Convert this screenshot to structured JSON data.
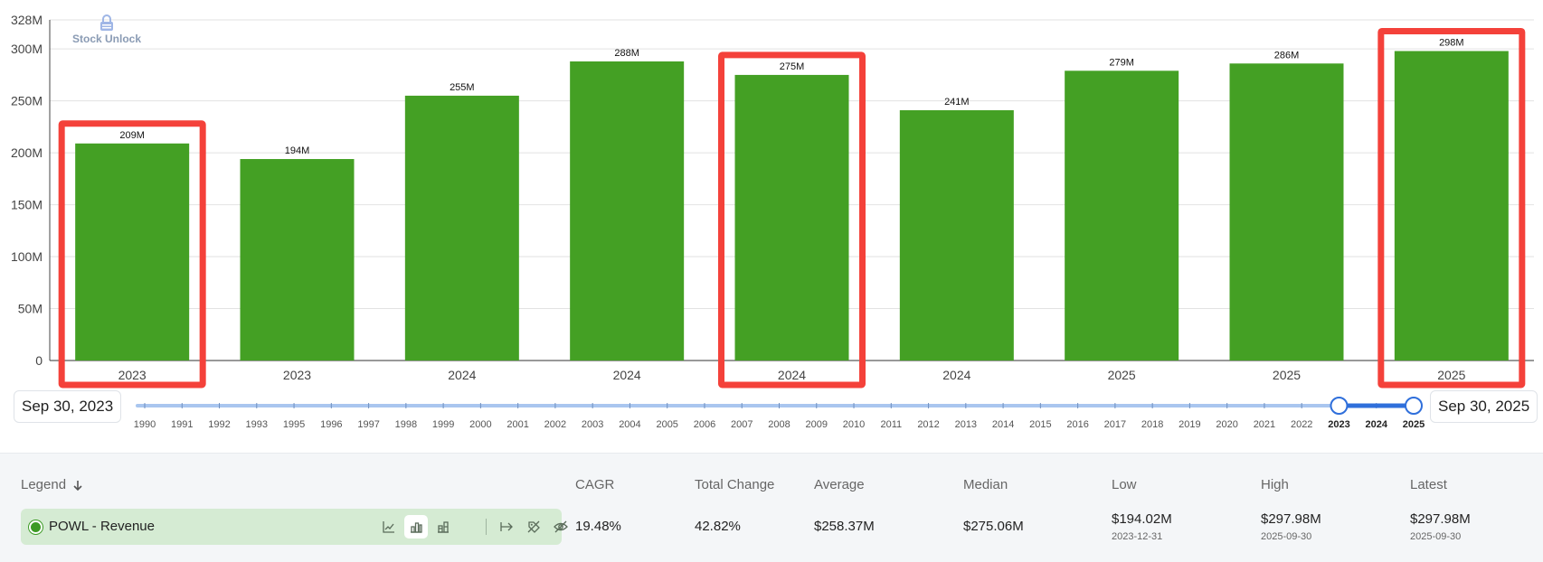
{
  "chart_data": {
    "type": "bar",
    "categories": [
      "2023",
      "2023",
      "2024",
      "2024",
      "2024",
      "2024",
      "2025",
      "2025",
      "2025"
    ],
    "values": [
      209,
      194,
      255,
      288,
      275,
      241,
      279,
      286,
      298
    ],
    "data_labels": [
      "209M",
      "194M",
      "255M",
      "288M",
      "275M",
      "241M",
      "279M",
      "286M",
      "298M"
    ],
    "highlighted": [
      true,
      false,
      false,
      false,
      true,
      false,
      false,
      false,
      true
    ],
    "y_ticks": [
      {
        "value": 0,
        "label": "0"
      },
      {
        "value": 50,
        "label": "50M"
      },
      {
        "value": 100,
        "label": "100M"
      },
      {
        "value": 150,
        "label": "150M"
      },
      {
        "value": 200,
        "label": "200M"
      },
      {
        "value": 250,
        "label": "250M"
      },
      {
        "value": 300,
        "label": "300M"
      },
      {
        "value": 328,
        "label": "328M"
      }
    ],
    "ylim": [
      0,
      328
    ],
    "grid": true,
    "bar_color": "#44a024",
    "highlight_color": "#f4413a",
    "title": "",
    "xlabel": "",
    "ylabel": ""
  },
  "watermark": {
    "text": "Stock Unlock",
    "icon": "lock-icon"
  },
  "timeline": {
    "start_label": "Sep 30, 2023",
    "end_label": "Sep 30, 2025",
    "years": [
      "1990",
      "1991",
      "1992",
      "1993",
      "1995",
      "1996",
      "1997",
      "1998",
      "1999",
      "2000",
      "2001",
      "2002",
      "2003",
      "2004",
      "2005",
      "2006",
      "2007",
      "2008",
      "2009",
      "2010",
      "2011",
      "2012",
      "2013",
      "2014",
      "2015",
      "2016",
      "2017",
      "2018",
      "2019",
      "2020",
      "2021",
      "2022",
      "2023",
      "2024",
      "2025"
    ],
    "selected_years": [
      "2023",
      "2024",
      "2025"
    ],
    "track_color": "#a9c6ef",
    "selected_color": "#2f6fdb"
  },
  "stats_panel": {
    "headers": {
      "legend": "Legend",
      "cagr": "CAGR",
      "total_change": "Total Change",
      "average": "Average",
      "median": "Median",
      "low": "Low",
      "high": "High",
      "latest": "Latest"
    },
    "series": {
      "name": "POWL - Revenue",
      "color": "#3d9a25",
      "cagr": "19.48%",
      "total_change": "42.82%",
      "average": "$258.37M",
      "median": "$275.06M",
      "low": "$194.02M",
      "low_date": "2023-12-31",
      "high": "$297.98M",
      "high_date": "2025-09-30",
      "latest": "$297.98M",
      "latest_date": "2025-09-30"
    },
    "tools": [
      "line-chart-icon",
      "bar-chart-icon",
      "stacked-bar-icon",
      "extend-arrow-icon",
      "no-tag-icon",
      "hide-eye-icon"
    ]
  }
}
